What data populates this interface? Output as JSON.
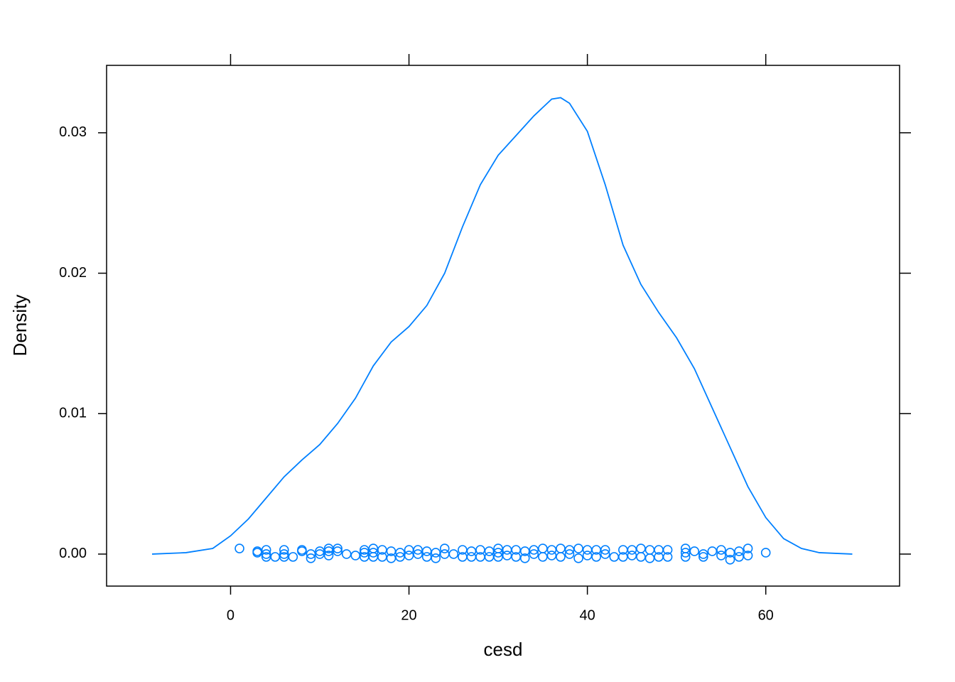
{
  "chart_data": {
    "type": "density",
    "xlabel": "cesd",
    "ylabel": "Density",
    "color": "#0080ff",
    "xlim": [
      -13.9,
      75.0
    ],
    "ylim": [
      -0.00228,
      0.0348
    ],
    "xticks": [
      0,
      20,
      40,
      60
    ],
    "yticks": [
      {
        "value": 0,
        "label": "0.00"
      },
      {
        "value": 0.01,
        "label": "0.01"
      },
      {
        "value": 0.02,
        "label": "0.02"
      },
      {
        "value": 0.03,
        "label": "0.03"
      }
    ],
    "curve": {
      "x": [
        -8.8,
        -5,
        -2,
        0,
        2,
        4,
        6,
        8,
        10,
        12,
        14,
        16,
        18,
        20,
        22,
        24,
        26,
        28,
        30,
        32,
        34,
        36,
        37,
        38,
        40,
        42,
        44,
        46,
        48,
        50,
        52,
        54,
        56,
        58,
        60,
        62,
        64,
        66,
        69.7
      ],
      "values": [
        0,
        0.0001,
        0.0004,
        0.0013,
        0.0025,
        0.004,
        0.0055,
        0.0067,
        0.0078,
        0.0093,
        0.0111,
        0.0134,
        0.0151,
        0.0162,
        0.0177,
        0.02,
        0.0233,
        0.0263,
        0.0284,
        0.0298,
        0.0312,
        0.0324,
        0.0325,
        0.0321,
        0.0301,
        0.0263,
        0.022,
        0.0192,
        0.0172,
        0.0154,
        0.0132,
        0.0104,
        0.0076,
        0.0048,
        0.0026,
        0.0011,
        0.0004,
        0.0001,
        0
      ]
    },
    "rug": {
      "x": [
        1,
        3,
        3,
        4,
        4,
        4,
        5,
        6,
        6,
        6,
        7,
        8,
        8,
        9,
        9,
        10,
        10,
        11,
        11,
        11,
        12,
        12,
        13,
        14,
        15,
        15,
        15,
        16,
        16,
        16,
        17,
        17,
        18,
        18,
        19,
        19,
        20,
        20,
        21,
        21,
        22,
        22,
        23,
        23,
        24,
        24,
        25,
        26,
        26,
        27,
        27,
        28,
        28,
        29,
        29,
        30,
        30,
        30,
        31,
        31,
        32,
        32,
        33,
        33,
        34,
        34,
        35,
        35,
        36,
        36,
        37,
        37,
        38,
        38,
        39,
        39,
        40,
        40,
        41,
        41,
        42,
        42,
        43,
        44,
        44,
        45,
        45,
        46,
        46,
        47,
        47,
        48,
        48,
        49,
        49,
        51,
        51,
        51,
        52,
        53,
        53,
        54,
        55,
        55,
        56,
        56,
        57,
        57,
        58,
        58,
        60
      ],
      "values": [
        0.0004,
        0.0002,
        0.0001,
        0.0003,
        0,
        -0.0002,
        -0.0002,
        0.0003,
        0,
        -0.0002,
        -0.0002,
        0.0003,
        0.0002,
        0,
        -0.0003,
        0.0002,
        0,
        0.0004,
        0.0002,
        -0.0001,
        0.0004,
        0.0002,
        0,
        -0.0001,
        0.0003,
        0.0001,
        -0.0002,
        0.0004,
        0.0001,
        -0.0002,
        0.0003,
        -0.0002,
        0.0002,
        -0.0003,
        0.0001,
        -0.0002,
        0.0003,
        -0.0001,
        0.0003,
        0,
        0.0002,
        -0.0002,
        0.0001,
        -0.0003,
        0.0004,
        0,
        0,
        0.0003,
        -0.0002,
        0.0002,
        -0.0002,
        0.0003,
        -0.0002,
        0.0002,
        -0.0002,
        0.0004,
        0.0001,
        -0.0002,
        0.0003,
        -0.0001,
        0.0003,
        -0.0002,
        0.0002,
        -0.0003,
        0.0003,
        0,
        0.0004,
        -0.0002,
        0.0003,
        -0.0001,
        0.0004,
        -0.0002,
        0.0003,
        0,
        0.0004,
        -0.0003,
        0.0003,
        -0.0001,
        0.0003,
        -0.0002,
        0.0003,
        0,
        -0.0002,
        0.0003,
        -0.0002,
        0.0003,
        -0.0001,
        0.0004,
        -0.0002,
        0.0003,
        -0.0003,
        0.0003,
        -0.0002,
        0.0003,
        -0.0002,
        0.0004,
        0.0001,
        -0.0002,
        0.0002,
        0,
        -0.0002,
        0.0002,
        0.0003,
        -0.0001,
        0.0001,
        -0.0004,
        0.0002,
        -0.0002,
        0.0004,
        -0.0001,
        0.0001
      ]
    }
  }
}
